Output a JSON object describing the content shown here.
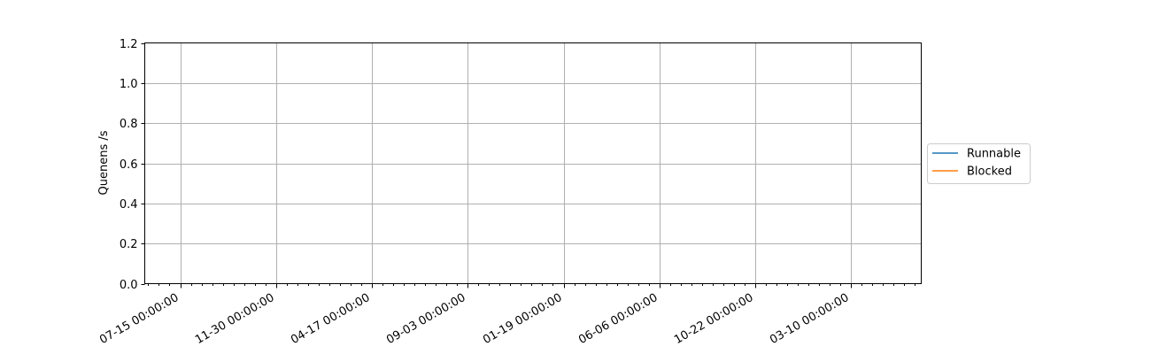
{
  "chart_data": {
    "type": "line",
    "title": "",
    "xlabel": "",
    "ylabel": "Quenens /s",
    "ylim": [
      0,
      1.2
    ],
    "yticks": [
      0.0,
      0.2,
      0.4,
      0.6,
      0.8,
      1.0,
      1.2
    ],
    "ytick_labels": [
      "0.0",
      "0.2",
      "0.4",
      "0.6",
      "0.8",
      "1.0",
      "1.2"
    ],
    "xtick_labels": [
      "07-15 00:00:00",
      "11-30 00:00:00",
      "04-17 00:00:00",
      "09-03 00:00:00",
      "01-19 00:00:00",
      "06-06 00:00:00",
      "10-22 00:00:00",
      "03-10 00:00:00"
    ],
    "grid": true,
    "legend_position": "center-right, outside plot area",
    "series": [
      {
        "name": "Runnable",
        "color": "#1f77b4",
        "x": [],
        "y": []
      },
      {
        "name": "Blocked",
        "color": "#ff7f0e",
        "x": [],
        "y": []
      }
    ]
  }
}
